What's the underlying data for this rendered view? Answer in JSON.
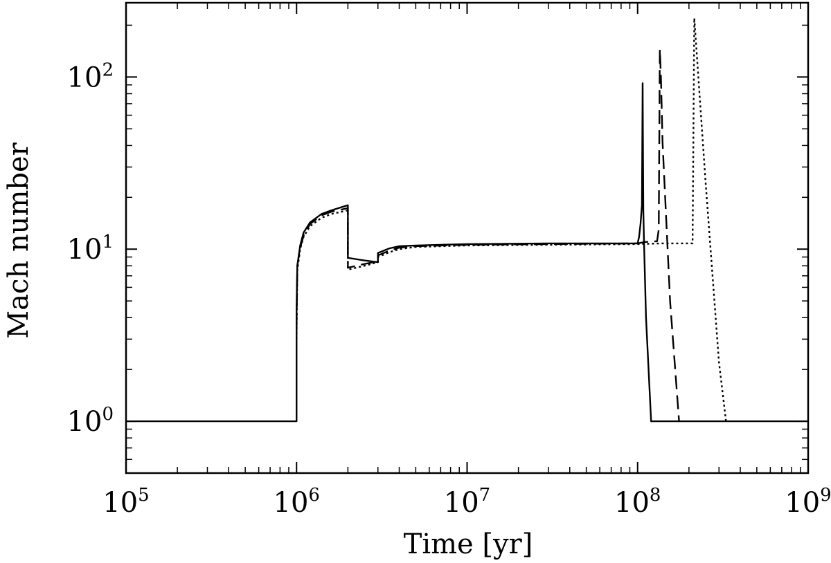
{
  "chart_data": {
    "type": "line",
    "title": "",
    "xlabel": "Time [yr]",
    "ylabel": "Mach number",
    "xscale": "log",
    "yscale": "log",
    "xlim": [
      100000,
      1000000000
    ],
    "ylim": [
      0.5,
      270
    ],
    "grid": false,
    "legend": "none",
    "x_ticks": [
      {
        "base": "10",
        "exp": "5",
        "value": 100000
      },
      {
        "base": "10",
        "exp": "6",
        "value": 1000000
      },
      {
        "base": "10",
        "exp": "7",
        "value": 10000000
      },
      {
        "base": "10",
        "exp": "8",
        "value": 100000000
      },
      {
        "base": "10",
        "exp": "9",
        "value": 1000000000
      }
    ],
    "y_ticks": [
      {
        "base": "10",
        "exp": "0",
        "value": 1
      },
      {
        "base": "10",
        "exp": "1",
        "value": 10
      },
      {
        "base": "10",
        "exp": "2",
        "value": 100
      }
    ],
    "series": [
      {
        "style": "solid",
        "color": "#000000",
        "x": [
          100000,
          1000000,
          1000000,
          1010000,
          1050000,
          1100000,
          1200000,
          1400000,
          1600000,
          2000000,
          2000000,
          2500000,
          3000000,
          3000000,
          3500000,
          4000000,
          5000000,
          10000000,
          30000000,
          100000000,
          102000000,
          104000000,
          106000000,
          107000000,
          108000000,
          109000000,
          112000000,
          120000000,
          1000000000
        ],
        "y": [
          1,
          1,
          4.5,
          8,
          10.5,
          12.5,
          14.3,
          16,
          16.8,
          18,
          8.9,
          8.6,
          8.4,
          9.5,
          10.1,
          10.4,
          10.5,
          10.7,
          10.8,
          10.8,
          11.8,
          14,
          18,
          92,
          17,
          11,
          4,
          1,
          1
        ]
      },
      {
        "style": "dashed",
        "color": "#000000",
        "x": [
          1000000,
          1010000,
          1050000,
          1100000,
          1200000,
          1400000,
          1600000,
          2000000,
          2000000,
          2500000,
          3000000,
          3000000,
          3500000,
          4000000,
          5000000,
          10000000,
          30000000,
          100000000,
          110000000,
          125000000,
          130000000,
          133000000,
          135000000,
          137000000,
          140000000,
          155000000,
          175000000
        ],
        "y": [
          3.5,
          8,
          10.2,
          12,
          14,
          15.7,
          16.5,
          17.3,
          7.8,
          8.2,
          8.5,
          9.2,
          9.8,
          10.2,
          10.4,
          10.6,
          10.7,
          10.8,
          11,
          11.1,
          11.1,
          13,
          145,
          100,
          42,
          5,
          1
        ]
      },
      {
        "style": "dotted",
        "color": "#000000",
        "x": [
          1000000,
          1010000,
          1050000,
          1100000,
          1200000,
          1400000,
          1600000,
          2000000,
          2000000,
          2500000,
          3000000,
          3000000,
          3500000,
          4000000,
          5000000,
          10000000,
          30000000,
          100000000,
          140000000,
          170000000,
          210000000,
          215000000,
          250000000,
          300000000,
          330000000
        ],
        "y": [
          3,
          7.5,
          10,
          11.8,
          13.6,
          15.2,
          16,
          16.8,
          7.6,
          8,
          8.4,
          9,
          9.6,
          10,
          10.3,
          10.5,
          10.6,
          10.7,
          10.8,
          10.8,
          10.8,
          220,
          25,
          2.2,
          1
        ]
      }
    ]
  }
}
